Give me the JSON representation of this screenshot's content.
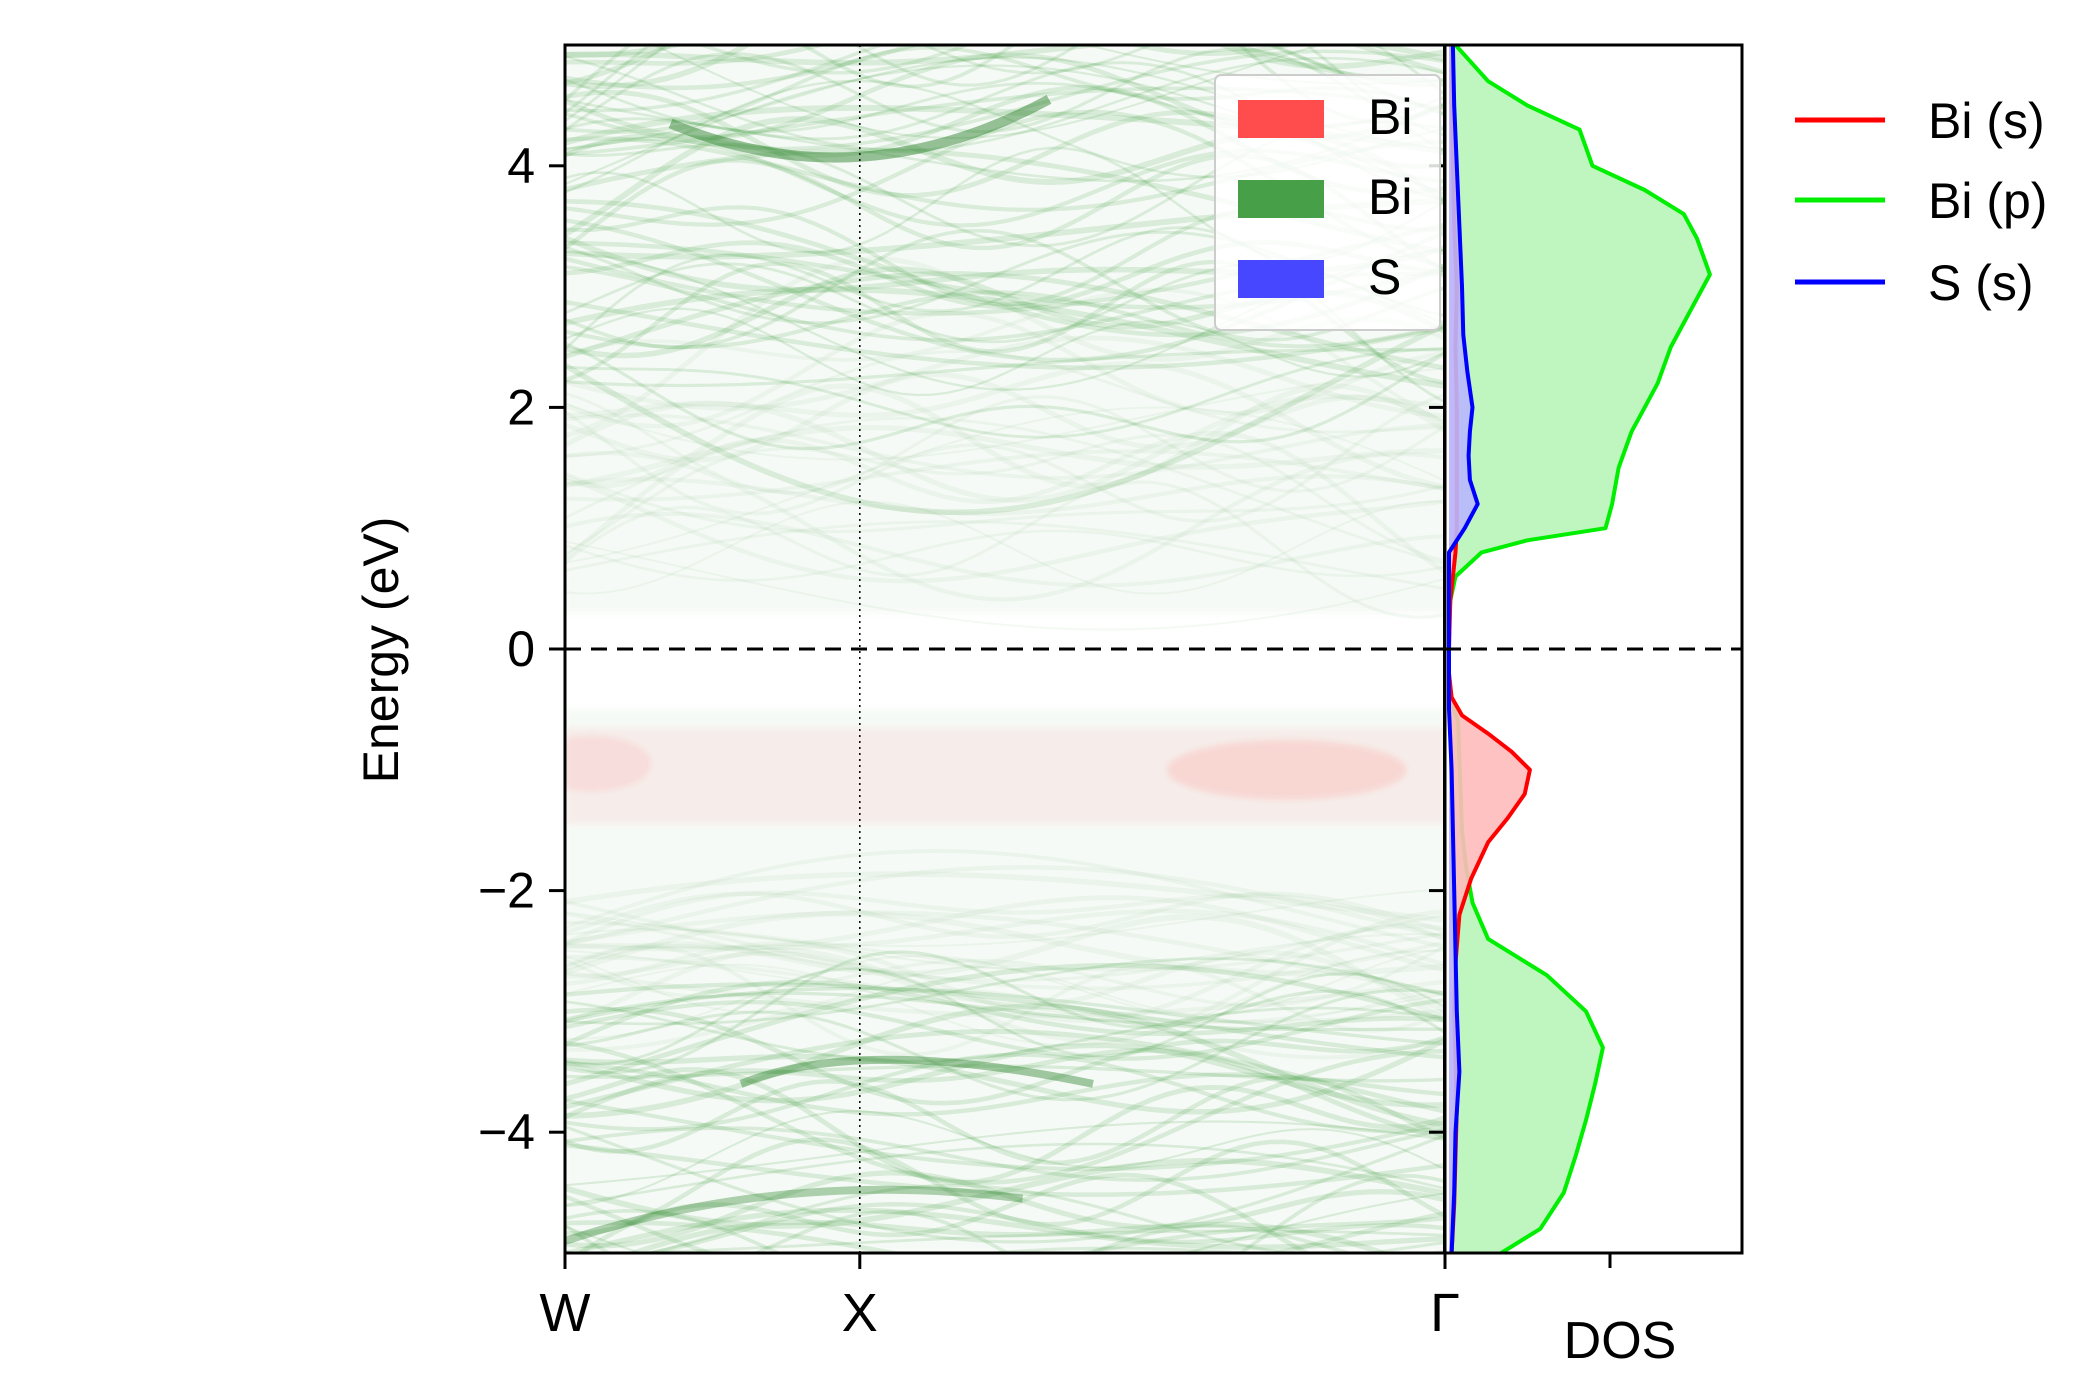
{
  "chart_data": [
    {
      "type": "heatmap",
      "subtype": "unfolded band structure",
      "title": "",
      "xlabel": "",
      "ylabel": "Energy (eV)",
      "ylim": [
        -5,
        5
      ],
      "yticks": [
        -4,
        -2,
        0,
        2,
        4
      ],
      "ytick_labels": [
        "−4",
        "−2",
        "0",
        "2",
        "4"
      ],
      "kpath": [
        "W",
        "X",
        "Γ"
      ],
      "kpath_positions": [
        0.0,
        0.335,
        1.0
      ],
      "fermi_level": 0,
      "legend_placement": "top-right",
      "legend": [
        {
          "label": "Bi",
          "color": "#ff4d4d"
        },
        {
          "label": "Bi",
          "color": "#47a047"
        },
        {
          "label": "S",
          "color": "#4747ff"
        }
      ],
      "weight_channels": {
        "bi_s_band_center": -1.0,
        "bi_p_valence_center": -4.2,
        "bi_p_conduction_center": 3.5
      }
    },
    {
      "type": "area",
      "subtype": "density of states",
      "title": "",
      "xlabel": "DOS",
      "ylabel": "",
      "ylim": [
        -5,
        5
      ],
      "legend_placement": "outside right",
      "series": [
        {
          "name": "Bi (s)",
          "color": "#ff0000",
          "fill": "#ffbbbb",
          "energy": [
            -5.0,
            -4.6,
            -4.2,
            -3.8,
            -3.4,
            -3.0,
            -2.6,
            -2.2,
            -1.9,
            -1.6,
            -1.4,
            -1.2,
            -1.0,
            -0.85,
            -0.7,
            -0.55,
            -0.4,
            -0.2,
            0.0,
            0.4,
            0.8,
            1.0,
            1.5,
            2.0,
            2.5,
            3.0,
            3.5,
            4.0,
            4.5,
            5.0
          ],
          "dos": [
            0.02,
            0.04,
            0.05,
            0.06,
            0.05,
            0.04,
            0.05,
            0.08,
            0.17,
            0.3,
            0.45,
            0.58,
            0.62,
            0.48,
            0.3,
            0.1,
            0.02,
            0.0,
            0.0,
            0.01,
            0.05,
            0.06,
            0.06,
            0.06,
            0.05,
            0.06,
            0.04,
            0.03,
            0.02,
            0.02
          ]
        },
        {
          "name": "Bi (p)",
          "color": "#00ee00",
          "fill": "#b8f5b8",
          "energy": [
            -5.0,
            -4.8,
            -4.5,
            -4.2,
            -3.9,
            -3.6,
            -3.3,
            -3.0,
            -2.7,
            -2.4,
            -2.1,
            -1.8,
            -1.5,
            -1.2,
            -0.9,
            -0.6,
            -0.4,
            -0.2,
            0.0,
            0.2,
            0.4,
            0.6,
            0.8,
            0.9,
            1.0,
            1.2,
            1.5,
            1.8,
            2.0,
            2.2,
            2.5,
            2.8,
            3.1,
            3.4,
            3.6,
            3.8,
            4.0,
            4.3,
            4.5,
            4.7,
            5.0
          ],
          "dos": [
            0.4,
            0.7,
            0.88,
            0.97,
            1.05,
            1.12,
            1.18,
            1.05,
            0.75,
            0.3,
            0.18,
            0.13,
            0.1,
            0.09,
            0.08,
            0.07,
            0.0,
            0.0,
            0.0,
            0.0,
            0.01,
            0.05,
            0.25,
            0.6,
            1.2,
            1.25,
            1.3,
            1.4,
            1.5,
            1.6,
            1.7,
            1.85,
            2.0,
            1.9,
            1.8,
            1.5,
            1.1,
            1.0,
            0.6,
            0.3,
            0.05
          ]
        },
        {
          "name": "S (s)",
          "color": "#0000ff",
          "fill": "#b8b8ff",
          "energy": [
            -5.0,
            -4.5,
            -4.0,
            -3.5,
            -3.0,
            -2.5,
            -2.0,
            -1.5,
            -1.0,
            -0.5,
            0.0,
            0.5,
            0.8,
            1.0,
            1.2,
            1.4,
            1.6,
            1.8,
            2.0,
            2.3,
            2.6,
            3.0,
            3.5,
            4.0,
            4.5,
            5.0
          ],
          "dos": [
            0.02,
            0.04,
            0.05,
            0.08,
            0.06,
            0.05,
            0.04,
            0.03,
            0.02,
            0.0,
            0.0,
            0.0,
            0.0,
            0.12,
            0.22,
            0.16,
            0.15,
            0.16,
            0.18,
            0.14,
            0.11,
            0.1,
            0.08,
            0.06,
            0.04,
            0.03
          ]
        }
      ]
    }
  ]
}
